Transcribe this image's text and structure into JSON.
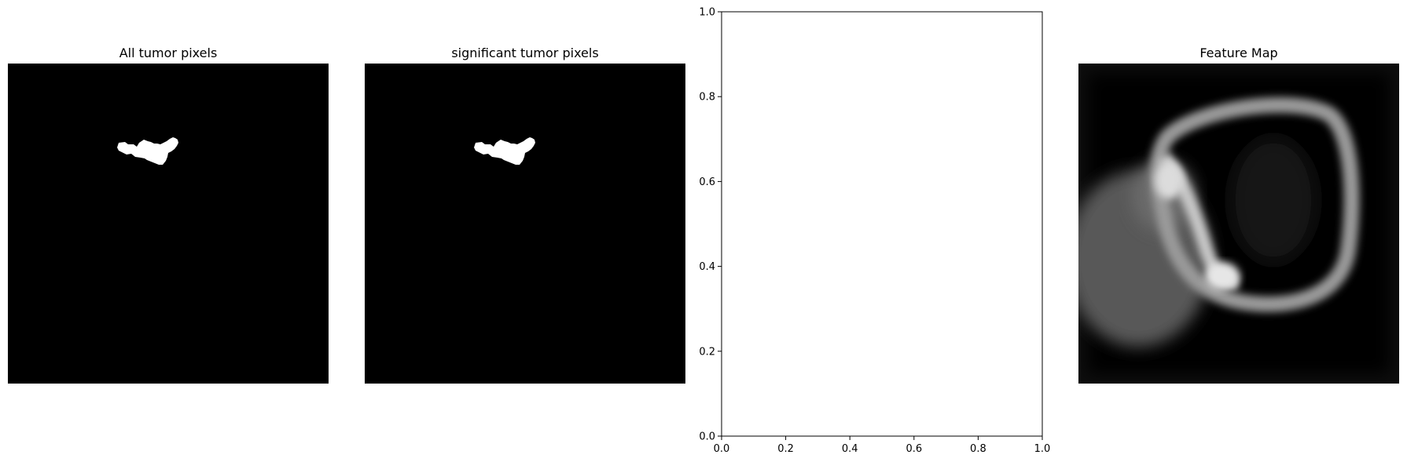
{
  "chart_data": [
    {
      "type": "image",
      "title": "All tumor pixels",
      "colormap": "gray",
      "axis": "off",
      "content": "binary tumor mask"
    },
    {
      "type": "image",
      "title": "significant tumor pixels",
      "colormap": "gray",
      "axis": "off",
      "content": "binary tumor mask"
    },
    {
      "type": "scatter",
      "title": "",
      "xlabel": "",
      "ylabel": "",
      "xlim": [
        0.0,
        1.0
      ],
      "ylim": [
        0.0,
        1.0
      ],
      "xticks": [
        "0.0",
        "0.2",
        "0.4",
        "0.6",
        "0.8",
        "1.0"
      ],
      "yticks": [
        "0.0",
        "0.2",
        "0.4",
        "0.6",
        "0.8",
        "1.0"
      ],
      "grid": false,
      "series": []
    },
    {
      "type": "image",
      "title": "Feature Map",
      "colormap": "gray",
      "axis": "off",
      "content": "grayscale feature activation map"
    }
  ]
}
